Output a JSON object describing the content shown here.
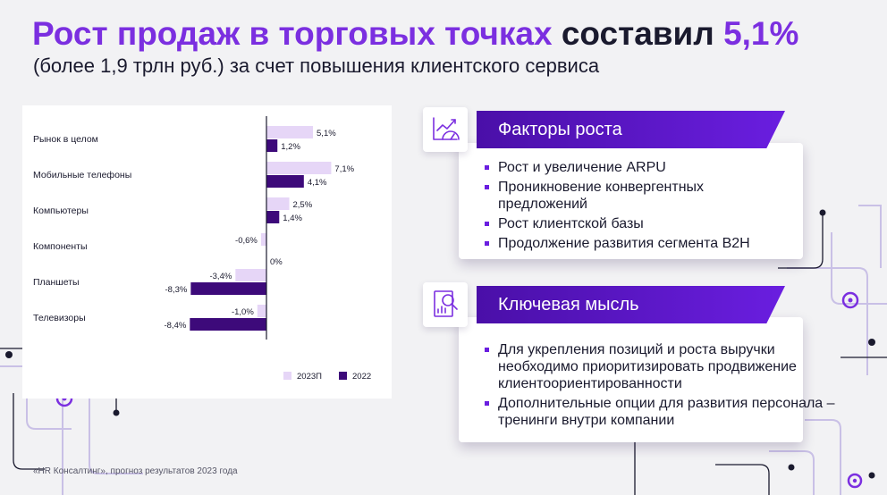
{
  "header": {
    "title_part1": "Рост продаж в торговых точках",
    "title_part2": "составил",
    "title_part3": "5,1%",
    "subtitle": "(более 1,9 трлн руб.) за счет повышения клиентского сервиса"
  },
  "chart_data": {
    "type": "bar",
    "orientation": "horizontal",
    "categories": [
      "Рынок в целом",
      "Мобильные телефоны",
      "Компьютеры",
      "Компоненты",
      "Планшеты",
      "Телевизоры"
    ],
    "series": [
      {
        "name": "2023П",
        "color": "#e6d6f7",
        "values": [
          5.1,
          7.1,
          2.5,
          -0.6,
          -3.4,
          -1.0
        ],
        "labels": [
          "5,1%",
          "7,1%",
          "2,5%",
          "-0,6%",
          "-3,4%",
          "-1,0%"
        ]
      },
      {
        "name": "2022",
        "color": "#3d0a7a",
        "values": [
          1.2,
          4.1,
          1.4,
          0,
          -8.3,
          -8.4
        ],
        "labels": [
          "1,2%",
          "4,1%",
          "1,4%",
          "0%",
          "-8,3%",
          "-8,4%"
        ]
      }
    ],
    "legend_position": "bottom-right",
    "grid": false
  },
  "growth_factors": {
    "heading": "Факторы роста",
    "icon": "chart-gauge-icon",
    "items": [
      "Рост и увеличение ARPU",
      "Проникновение конвергентных предложений",
      "Рост клиентской базы",
      "Продолжение развития сегмента B2H"
    ]
  },
  "key_idea": {
    "heading": "Ключевая мысль",
    "icon": "document-search-icon",
    "items": [
      "Для укрепления позиций и роста выручки необходимо приоритизировать продвижение клиентоориентированности",
      "Дополнительные опции для развития персонала – тренинги внутри компании"
    ]
  },
  "footnote": "«HR Консалтинг», прогноз результатов 2023 года",
  "colors": {
    "accent": "#7b2fe0",
    "header_bg": "#5a16c8",
    "dark": "#1a1a2e",
    "bar_light": "#e6d6f7",
    "bar_dark": "#3d0a7a"
  }
}
